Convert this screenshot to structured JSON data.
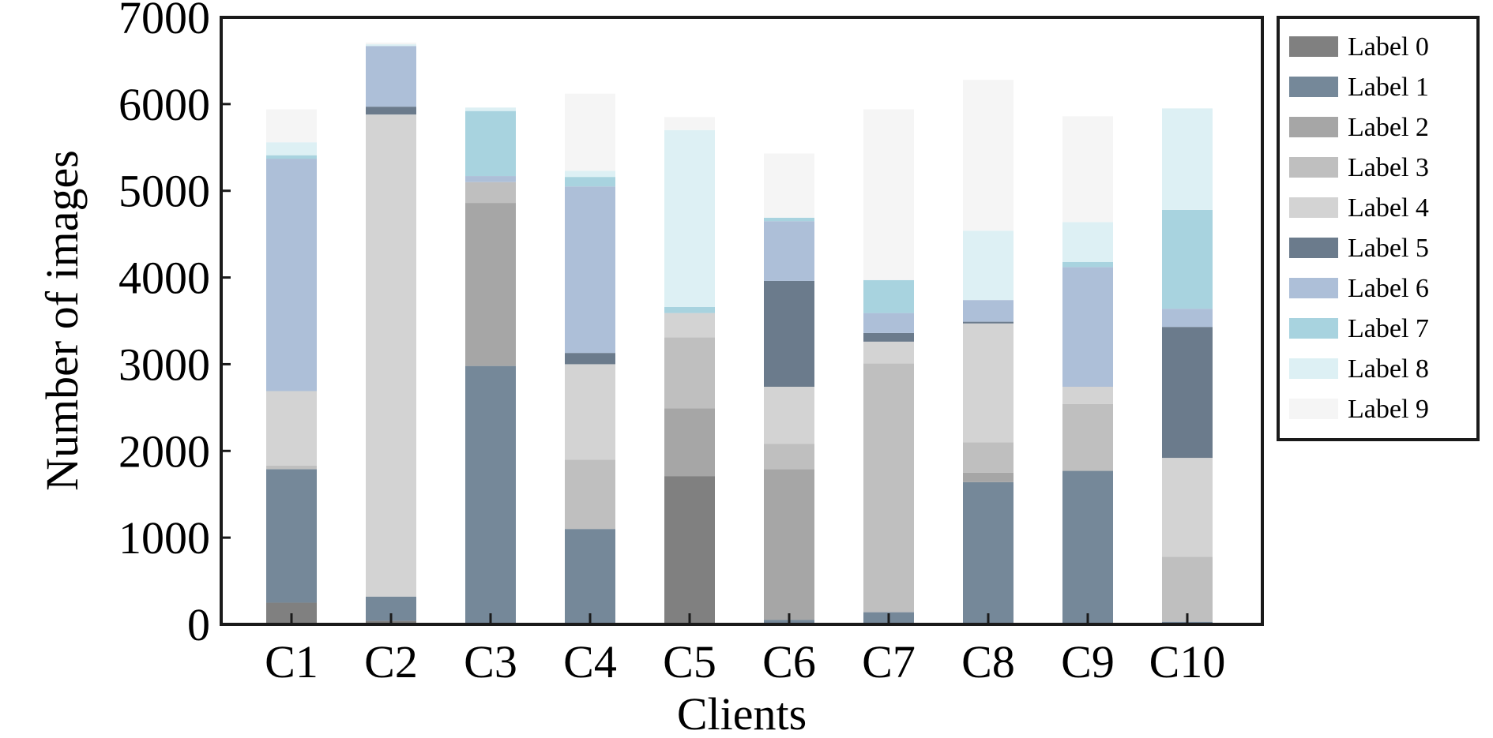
{
  "chart_data": {
    "type": "bar",
    "stacked": true,
    "xlabel": "Clients",
    "ylabel": "Number of images",
    "ylim": [
      0,
      7000
    ],
    "yticks": [
      0,
      1000,
      2000,
      3000,
      4000,
      5000,
      6000,
      7000
    ],
    "grid": false,
    "legend_position": "right, outside plot",
    "categories": [
      "C1",
      "C2",
      "C3",
      "C4",
      "C5",
      "C6",
      "C7",
      "C8",
      "C9",
      "C10"
    ],
    "series": [
      {
        "name": "Label 0",
        "color": "#808080",
        "values": [
          250,
          40,
          0,
          0,
          1710,
          0,
          0,
          0,
          0,
          0
        ]
      },
      {
        "name": "Label 1",
        "color": "#758899",
        "values": [
          1540,
          280,
          2980,
          1100,
          0,
          50,
          140,
          1640,
          1770,
          30
        ]
      },
      {
        "name": "Label 2",
        "color": "#a6a6a6",
        "values": [
          0,
          0,
          1880,
          0,
          780,
          1740,
          0,
          110,
          0,
          0
        ]
      },
      {
        "name": "Label 3",
        "color": "#bfbfbf",
        "values": [
          40,
          0,
          240,
          800,
          820,
          290,
          2870,
          350,
          770,
          750
        ]
      },
      {
        "name": "Label 4",
        "color": "#d3d3d3",
        "values": [
          860,
          5560,
          0,
          1100,
          280,
          660,
          250,
          1370,
          200,
          1140
        ]
      },
      {
        "name": "Label 5",
        "color": "#6b7b8c",
        "values": [
          0,
          90,
          0,
          130,
          0,
          1220,
          100,
          20,
          0,
          1510
        ]
      },
      {
        "name": "Label 6",
        "color": "#adbfd8",
        "values": [
          2680,
          700,
          70,
          1920,
          0,
          690,
          230,
          250,
          1380,
          210
        ]
      },
      {
        "name": "Label 7",
        "color": "#a8d3df",
        "values": [
          40,
          0,
          750,
          110,
          70,
          40,
          380,
          0,
          60,
          1140
        ]
      },
      {
        "name": "Label 8",
        "color": "#ddf0f4",
        "values": [
          150,
          20,
          40,
          70,
          2040,
          0,
          0,
          800,
          460,
          1170
        ]
      },
      {
        "name": "Label 9",
        "color": "#f5f5f5",
        "values": [
          380,
          20,
          0,
          890,
          150,
          740,
          1970,
          1740,
          1220,
          0
        ]
      }
    ]
  }
}
